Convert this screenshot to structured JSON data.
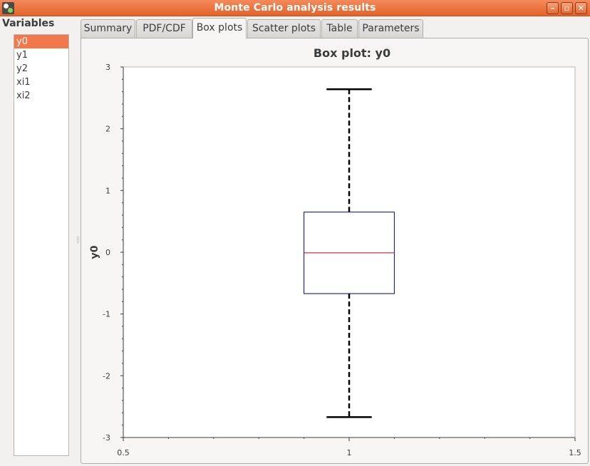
{
  "window": {
    "title": "Monte Carlo analysis results",
    "icon": "app-icon",
    "buttons": [
      "minimize-icon",
      "maximize-icon",
      "close-icon"
    ]
  },
  "sidebar": {
    "label": "Variables",
    "items": [
      {
        "label": "y0",
        "selected": true
      },
      {
        "label": "y1",
        "selected": false
      },
      {
        "label": "y2",
        "selected": false
      },
      {
        "label": "xi1",
        "selected": false
      },
      {
        "label": "xi2",
        "selected": false
      }
    ]
  },
  "tabs": [
    {
      "label": "Summary",
      "active": false
    },
    {
      "label": "PDF/CDF",
      "active": false
    },
    {
      "label": "Box plots",
      "active": true
    },
    {
      "label": "Scatter plots",
      "active": false
    },
    {
      "label": "Table",
      "active": false
    },
    {
      "label": "Parameters",
      "active": false
    }
  ],
  "colors": {
    "accent": "#f0784a",
    "box": "#0000aa",
    "median": "#cc0000",
    "whisker": "#000000"
  },
  "chart_data": {
    "type": "box",
    "title": "Box plot: y0",
    "xlabel": "",
    "ylabel": "y0",
    "xlim": [
      0.5,
      1.5
    ],
    "ylim": [
      -3,
      3
    ],
    "x_ticks": [
      "0.5",
      "1",
      "1.5"
    ],
    "y_ticks": [
      "3",
      "2",
      "1",
      "0",
      "-1",
      "-2",
      "-3"
    ],
    "grid": false,
    "series": [
      {
        "position": 1,
        "whisker_low": -2.67,
        "q1": -0.67,
        "median": -0.01,
        "q3": 0.65,
        "whisker_high": 2.64
      }
    ]
  }
}
